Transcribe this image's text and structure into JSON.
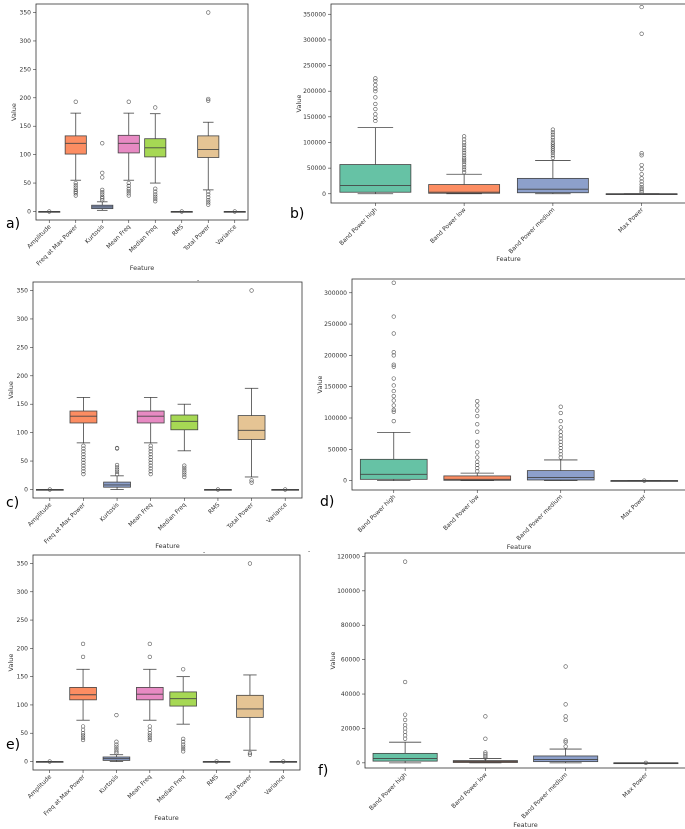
{
  "figure": {
    "tick_marks": [
      "-",
      "-",
      "-"
    ]
  },
  "chart_data": [
    {
      "type": "box",
      "panel_label": "a)",
      "xlabel": "Feature",
      "ylabel": "Value",
      "ylim": [
        -15,
        365
      ],
      "yticks": [
        0,
        50,
        100,
        150,
        200,
        250,
        300,
        350
      ],
      "categories": [
        "Amplitude",
        "Freq at Max Power",
        "Kurtosis",
        "Mean Freq",
        "Median Freq",
        "RMS",
        "Total Power",
        "Variance"
      ],
      "colors": [
        "#66c2a5",
        "#fc8d62",
        "#8da0cb",
        "#e78ac3",
        "#a6d854",
        "#ffd92f",
        "#e5c494",
        "#b3b3b3"
      ],
      "boxes": [
        {
          "min": 0,
          "q1": 0,
          "median": 0,
          "q3": 0,
          "max": 0,
          "outliers": [
            0
          ]
        },
        {
          "min": 55,
          "q1": 101,
          "median": 120,
          "q3": 133,
          "max": 173,
          "outliers": [
            28,
            32,
            35,
            38,
            42,
            46,
            50,
            193
          ]
        },
        {
          "min": 2,
          "q1": 5,
          "median": 8,
          "q3": 11,
          "max": 17,
          "outliers": [
            20,
            23,
            26,
            30,
            34,
            38,
            60,
            68,
            120
          ]
        },
        {
          "min": 55,
          "q1": 103,
          "median": 120,
          "q3": 134,
          "max": 173,
          "outliers": [
            28,
            32,
            36,
            40,
            45,
            50,
            193
          ]
        },
        {
          "min": 50,
          "q1": 96,
          "median": 112,
          "q3": 128,
          "max": 172,
          "outliers": [
            18,
            22,
            26,
            30,
            35,
            40,
            183
          ]
        },
        {
          "min": 0,
          "q1": 0,
          "median": 0,
          "q3": 0,
          "max": 0,
          "outliers": [
            0
          ]
        },
        {
          "min": 38,
          "q1": 95,
          "median": 109,
          "q3": 133,
          "max": 157,
          "outliers": [
            12,
            16,
            20,
            25,
            30,
            35,
            195,
            198,
            350
          ]
        },
        {
          "min": 0,
          "q1": 0,
          "median": 0,
          "q3": 0,
          "max": 0,
          "outliers": [
            0
          ]
        }
      ]
    },
    {
      "type": "box",
      "panel_label": "b)",
      "xlabel": "Feature",
      "ylabel": "Value",
      "ylim": [
        -18000,
        370000
      ],
      "yticks": [
        0,
        50000,
        100000,
        150000,
        200000,
        250000,
        300000,
        350000
      ],
      "categories": [
        "Band Power high",
        "Band Power low",
        "Band Power medium",
        "Max Power"
      ],
      "colors": [
        "#66c2a5",
        "#fc8d62",
        "#8da0cb",
        "#e78ac3"
      ],
      "boxes": [
        {
          "min": 0,
          "q1": 3000,
          "median": 16000,
          "q3": 57000,
          "max": 129000,
          "outliers": [
            142000,
            148000,
            155000,
            165000,
            175000,
            188000,
            200000,
            205000,
            212000,
            220000,
            225000
          ]
        },
        {
          "min": 0,
          "q1": 1000,
          "median": 3000,
          "q3": 18000,
          "max": 38000,
          "outliers": [
            42000,
            47000,
            52000,
            57000,
            62000,
            66000,
            70000,
            75000,
            80000,
            85000,
            90000,
            95000,
            100000,
            106000,
            112000
          ]
        },
        {
          "min": 0,
          "q1": 2000,
          "median": 9000,
          "q3": 30000,
          "max": 65000,
          "outliers": [
            70000,
            75000,
            80000,
            84000,
            88000,
            92000,
            96000,
            100000,
            105000,
            110000,
            115000,
            120000,
            125000
          ]
        },
        {
          "min": 0,
          "q1": 0,
          "median": 0,
          "q3": 0,
          "max": 0,
          "outliers": [
            3000,
            6000,
            9000,
            13000,
            18000,
            24000,
            30000,
            38000,
            48000,
            56000,
            75000,
            79000,
            312000,
            364000
          ]
        }
      ]
    },
    {
      "type": "box",
      "panel_label": "c)",
      "xlabel": "Feature",
      "ylabel": "Value",
      "ylim": [
        -15,
        365
      ],
      "yticks": [
        0,
        50,
        100,
        150,
        200,
        250,
        300,
        350
      ],
      "categories": [
        "Amplitude",
        "Freq at Max Power",
        "Kurtosis",
        "Mean Freq",
        "Median Freq",
        "RMS",
        "Total Power",
        "Variance"
      ],
      "colors": [
        "#66c2a5",
        "#fc8d62",
        "#8da0cb",
        "#e78ac3",
        "#a6d854",
        "#ffd92f",
        "#e5c494",
        "#b3b3b3"
      ],
      "boxes": [
        {
          "min": 0,
          "q1": 0,
          "median": 0,
          "q3": 0,
          "max": 0,
          "outliers": [
            0
          ]
        },
        {
          "min": 82,
          "q1": 117,
          "median": 129,
          "q3": 138,
          "max": 162,
          "outliers": [
            27,
            32,
            37,
            42,
            47,
            52,
            57,
            62,
            67,
            72,
            77
          ]
        },
        {
          "min": 0,
          "q1": 4,
          "median": 8,
          "q3": 13,
          "max": 24,
          "outliers": [
            27,
            31,
            35,
            39,
            43,
            72,
            73
          ]
        },
        {
          "min": 82,
          "q1": 117,
          "median": 129,
          "q3": 138,
          "max": 162,
          "outliers": [
            27,
            32,
            37,
            42,
            47,
            52,
            57,
            62,
            67,
            72,
            77
          ]
        },
        {
          "min": 68,
          "q1": 105,
          "median": 120,
          "q3": 131,
          "max": 150,
          "outliers": [
            22,
            26,
            30,
            34,
            38,
            42
          ]
        },
        {
          "min": 0,
          "q1": 0,
          "median": 0,
          "q3": 0,
          "max": 0,
          "outliers": [
            0
          ]
        },
        {
          "min": 22,
          "q1": 88,
          "median": 104,
          "q3": 130,
          "max": 178,
          "outliers": [
            12,
            16,
            350
          ]
        },
        {
          "min": 0,
          "q1": 0,
          "median": 0,
          "q3": 0,
          "max": 0,
          "outliers": [
            0
          ]
        }
      ]
    },
    {
      "type": "box",
      "panel_label": "d)",
      "xlabel": "Feature",
      "ylabel": "Value",
      "ylim": [
        -15000,
        322000
      ],
      "yticks": [
        0,
        50000,
        100000,
        150000,
        200000,
        250000,
        300000
      ],
      "categories": [
        "Band Power high",
        "Band Power low",
        "Band Power medium",
        "Max Power"
      ],
      "colors": [
        "#66c2a5",
        "#fc8d62",
        "#8da0cb",
        "#e78ac3"
      ],
      "boxes": [
        {
          "min": 0,
          "q1": 2000,
          "median": 10000,
          "q3": 34000,
          "max": 77000,
          "outliers": [
            95000,
            110000,
            113000,
            120000,
            128000,
            135000,
            143000,
            152000,
            163000,
            182000,
            185000,
            200000,
            205000,
            235000,
            262000,
            316000
          ]
        },
        {
          "min": 0,
          "q1": 500,
          "median": 2000,
          "q3": 7500,
          "max": 12000,
          "outliers": [
            15000,
            20000,
            25000,
            30000,
            37000,
            45000,
            55000,
            62000,
            78000,
            90000,
            103000,
            112000,
            120000,
            127000
          ]
        },
        {
          "min": 0,
          "q1": 1000,
          "median": 5000,
          "q3": 16000,
          "max": 33000,
          "outliers": [
            37000,
            42000,
            47000,
            52000,
            57000,
            62000,
            67000,
            72000,
            78000,
            85000,
            95000,
            108000,
            118000
          ]
        },
        {
          "min": 0,
          "q1": 0,
          "median": 0,
          "q3": 0,
          "max": 0,
          "outliers": [
            0
          ]
        }
      ]
    },
    {
      "type": "box",
      "panel_label": "e)",
      "xlabel": "Feature",
      "ylabel": "Value",
      "ylim": [
        -15,
        365
      ],
      "yticks": [
        0,
        50,
        100,
        150,
        200,
        250,
        300,
        350
      ],
      "categories": [
        "Amplitude",
        "Freq at Max Power",
        "Kurtosis",
        "Mean Freq",
        "Median Freq",
        "RMS",
        "Total Power",
        "Variance"
      ],
      "colors": [
        "#66c2a5",
        "#fc8d62",
        "#8da0cb",
        "#e78ac3",
        "#a6d854",
        "#ffd92f",
        "#e5c494",
        "#b3b3b3"
      ],
      "boxes": [
        {
          "min": 0,
          "q1": 0,
          "median": 0,
          "q3": 0,
          "max": 0,
          "outliers": [
            0
          ]
        },
        {
          "min": 73,
          "q1": 109,
          "median": 118,
          "q3": 131,
          "max": 163,
          "outliers": [
            38,
            42,
            46,
            50,
            56,
            62,
            185,
            208
          ]
        },
        {
          "min": 0,
          "q1": 2,
          "median": 5,
          "q3": 8,
          "max": 12,
          "outliers": [
            15,
            18,
            22,
            26,
            30,
            35,
            82
          ]
        },
        {
          "min": 73,
          "q1": 109,
          "median": 119,
          "q3": 131,
          "max": 163,
          "outliers": [
            38,
            42,
            46,
            50,
            56,
            62,
            185,
            208
          ]
        },
        {
          "min": 66,
          "q1": 98,
          "median": 111,
          "q3": 123,
          "max": 150,
          "outliers": [
            18,
            22,
            26,
            30,
            35,
            40,
            163
          ]
        },
        {
          "min": 0,
          "q1": 0,
          "median": 0,
          "q3": 0,
          "max": 0,
          "outliers": [
            0
          ]
        },
        {
          "min": 20,
          "q1": 78,
          "median": 93,
          "q3": 117,
          "max": 153,
          "outliers": [
            12,
            15,
            350
          ]
        },
        {
          "min": 0,
          "q1": 0,
          "median": 0,
          "q3": 0,
          "max": 0,
          "outliers": [
            0
          ]
        }
      ]
    },
    {
      "type": "box",
      "panel_label": "f)",
      "xlabel": "Feature",
      "ylabel": "Value",
      "ylim": [
        -3000,
        122000
      ],
      "yticks": [
        0,
        20000,
        40000,
        60000,
        80000,
        100000,
        120000
      ],
      "categories": [
        "Band Power high",
        "Band Power low",
        "Band Power medium",
        "Max Power"
      ],
      "colors": [
        "#66c2a5",
        "#fc8d62",
        "#8da0cb",
        "#e78ac3"
      ],
      "boxes": [
        {
          "min": 0,
          "q1": 1000,
          "median": 2500,
          "q3": 5500,
          "max": 12000,
          "outliers": [
            14000,
            16000,
            18000,
            20000,
            22000,
            25000,
            28000,
            47000,
            117000
          ]
        },
        {
          "min": 0,
          "q1": 200,
          "median": 700,
          "q3": 1300,
          "max": 2500,
          "outliers": [
            3000,
            4000,
            5000,
            6000,
            14000,
            27000
          ]
        },
        {
          "min": 0,
          "q1": 700,
          "median": 2000,
          "q3": 4000,
          "max": 8000,
          "outliers": [
            9500,
            12000,
            13000,
            25000,
            27000,
            34000,
            56000
          ]
        },
        {
          "min": 0,
          "q1": 0,
          "median": 0,
          "q3": 0,
          "max": 0,
          "outliers": [
            0
          ]
        }
      ]
    }
  ]
}
